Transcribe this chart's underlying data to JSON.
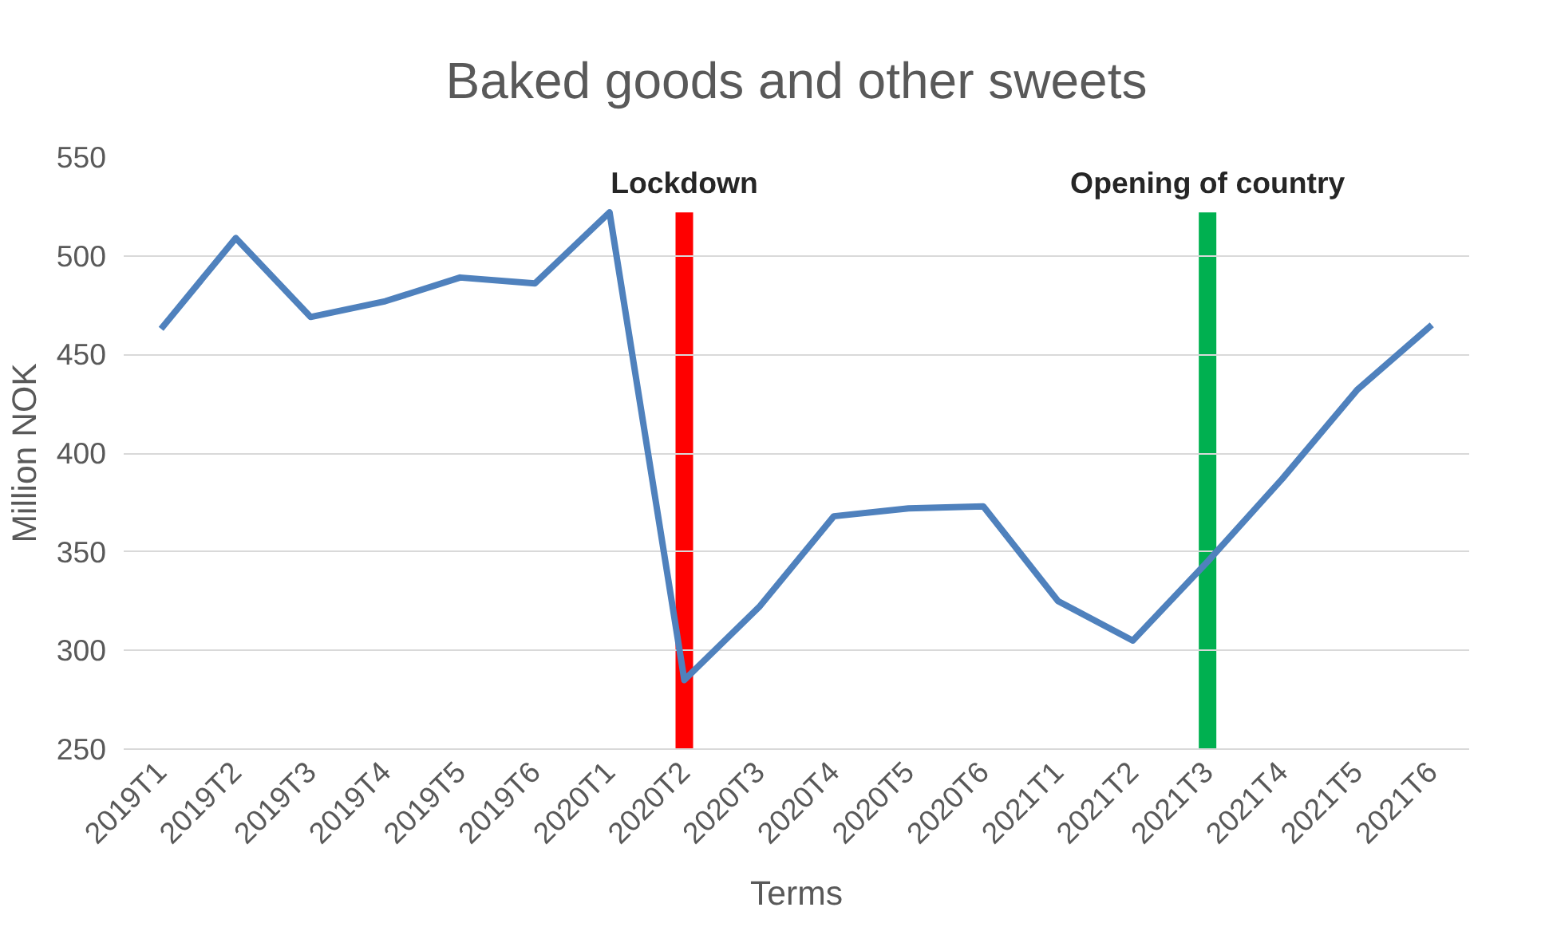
{
  "chart_data": {
    "type": "line",
    "title": "Baked goods and other sweets",
    "xlabel": "Terms",
    "ylabel": "Million NOK",
    "categories": [
      "2019T1",
      "2019T2",
      "2019T3",
      "2019T4",
      "2019T5",
      "2019T6",
      "2020T1",
      "2020T2",
      "2020T3",
      "2020T4",
      "2020T5",
      "2020T6",
      "2021T1",
      "2021T2",
      "2021T3",
      "2021T4",
      "2021T5",
      "2021T6"
    ],
    "series": [
      {
        "color": "#4f81bd",
        "values": [
          463,
          509,
          469,
          477,
          489,
          486,
          522,
          285,
          322,
          368,
          372,
          373,
          325,
          305,
          345,
          387,
          432,
          465
        ]
      }
    ],
    "ylim": [
      250,
      550
    ],
    "yticks": [
      250,
      300,
      350,
      400,
      450,
      500,
      550
    ],
    "grid": "y",
    "marker": "none",
    "line_style": "solid",
    "ref_lines": [
      {
        "axis": "x",
        "value": "2020T2",
        "label": "Lockdown",
        "color": "#ff0000"
      },
      {
        "axis": "x",
        "value": "2021T3",
        "label": "Opening of country",
        "color": "#00b050"
      }
    ]
  }
}
